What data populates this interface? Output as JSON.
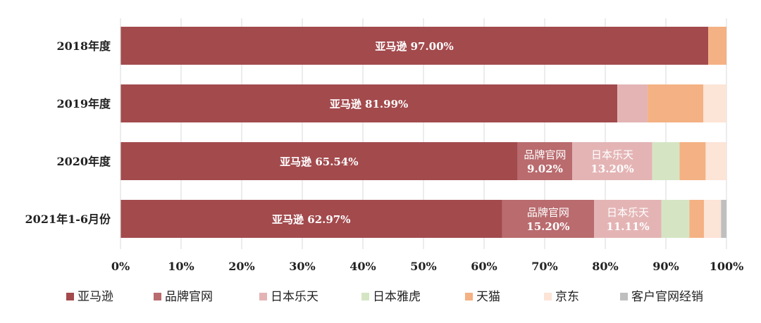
{
  "chart_data": {
    "type": "bar",
    "orientation": "horizontal",
    "stacked": true,
    "percent_stacked": true,
    "categories": [
      "2018年度",
      "2019年度",
      "2020年度",
      "2021年1-6月份"
    ],
    "series": [
      {
        "name": "亚马逊",
        "color": "#A34A4D",
        "values": [
          97.0,
          81.99,
          65.54,
          62.97
        ],
        "labels": [
          "亚马逊 97.00%",
          "亚马逊 81.99%",
          "亚马逊 65.54%",
          "亚马逊 62.97%"
        ]
      },
      {
        "name": "品牌官网",
        "color": "#B96B6E",
        "values": [
          0,
          0,
          9.02,
          15.2
        ],
        "labels": [
          "",
          "",
          "品牌官网|9.02%",
          "品牌官网|15.20%"
        ]
      },
      {
        "name": "日本乐天",
        "color": "#E4B4B5",
        "values": [
          0,
          5.0,
          13.2,
          11.11
        ],
        "labels": [
          "",
          "",
          "日本乐天|13.20%",
          "日本乐天|11.11%"
        ]
      },
      {
        "name": "日本雅虎",
        "color": "#D5E5C4",
        "values": [
          0,
          0,
          4.5,
          4.6
        ],
        "labels": [
          "",
          "",
          "",
          ""
        ]
      },
      {
        "name": "天猫",
        "color": "#F4B183",
        "values": [
          3.0,
          9.2,
          4.3,
          2.4
        ],
        "labels": [
          "",
          "",
          "",
          ""
        ]
      },
      {
        "name": "京东",
        "color": "#FCE4D6",
        "values": [
          0,
          3.81,
          3.44,
          2.82
        ],
        "labels": [
          "",
          "",
          "",
          ""
        ]
      },
      {
        "name": "客户官网经销",
        "color": "#BFBFBF",
        "values": [
          0,
          0,
          0,
          0.9
        ],
        "labels": [
          "",
          "",
          "",
          ""
        ]
      }
    ],
    "xlim": [
      0,
      100
    ],
    "x_ticks": [
      "0%",
      "10%",
      "20%",
      "30%",
      "40%",
      "50%",
      "60%",
      "70%",
      "80%",
      "90%",
      "100%"
    ],
    "grid": true,
    "legend_position": "bottom"
  }
}
